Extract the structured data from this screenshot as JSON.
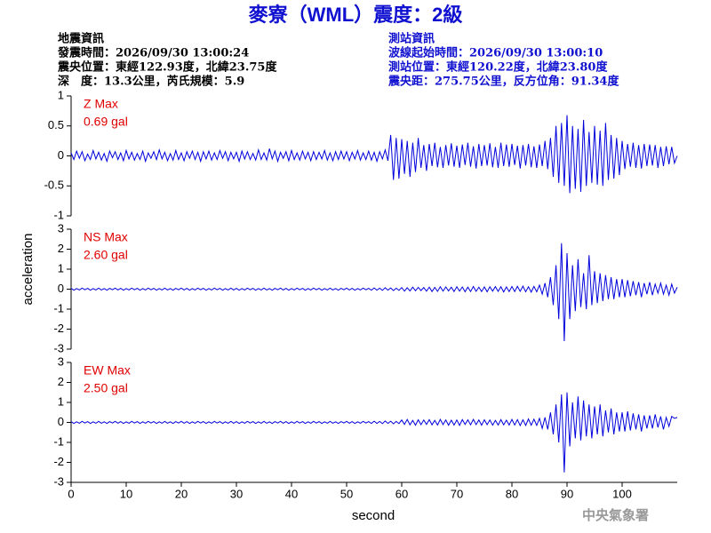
{
  "header": {
    "title": "麥寮（WML）震度：2級",
    "left": [
      "地震資訊",
      "發震時間：2026/09/30 13:00:24",
      "震央位置：東經122.93度，北緯23.75度",
      "深　度：13.3公里，芮氏規模：5.9"
    ],
    "right": [
      "測站資訊",
      "波線起始時間：2026/09/30 13:00:10",
      "測站位置：東經120.22度，北緯23.80度",
      "震央距：275.75公里，反方位角：91.34度"
    ],
    "footer": "中央氣象署"
  },
  "chart_data": {
    "type": "line",
    "xlabel": "second",
    "ylabel": "acceleration",
    "xlim": [
      0,
      110
    ],
    "xticks": [
      0,
      10,
      20,
      30,
      40,
      50,
      60,
      70,
      80,
      90,
      100
    ],
    "x": [
      0,
      0.5,
      1,
      1.5,
      2,
      2.5,
      3,
      3.5,
      4,
      4.5,
      5,
      5.5,
      6,
      6.5,
      7,
      7.5,
      8,
      8.5,
      9,
      9.5,
      10,
      10.5,
      11,
      11.5,
      12,
      12.5,
      13,
      13.5,
      14,
      14.5,
      15,
      15.5,
      16,
      16.5,
      17,
      17.5,
      18,
      18.5,
      19,
      19.5,
      20,
      20.5,
      21,
      21.5,
      22,
      22.5,
      23,
      23.5,
      24,
      24.5,
      25,
      25.5,
      26,
      26.5,
      27,
      27.5,
      28,
      28.5,
      29,
      29.5,
      30,
      30.5,
      31,
      31.5,
      32,
      32.5,
      33,
      33.5,
      34,
      34.5,
      35,
      35.5,
      36,
      36.5,
      37,
      37.5,
      38,
      38.5,
      39,
      39.5,
      40,
      40.5,
      41,
      41.5,
      42,
      42.5,
      43,
      43.5,
      44,
      44.5,
      45,
      45.5,
      46,
      46.5,
      47,
      47.5,
      48,
      48.5,
      49,
      49.5,
      50,
      50.5,
      51,
      51.5,
      52,
      52.5,
      53,
      53.5,
      54,
      54.5,
      55,
      55.5,
      56,
      56.5,
      57,
      57.5,
      58,
      58.5,
      59,
      59.5,
      60,
      60.5,
      61,
      61.5,
      62,
      62.5,
      63,
      63.5,
      64,
      64.5,
      65,
      65.5,
      66,
      66.5,
      67,
      67.5,
      68,
      68.5,
      69,
      69.5,
      70,
      70.5,
      71,
      71.5,
      72,
      72.5,
      73,
      73.5,
      74,
      74.5,
      75,
      75.5,
      76,
      76.5,
      77,
      77.5,
      78,
      78.5,
      79,
      79.5,
      80,
      80.5,
      81,
      81.5,
      82,
      82.5,
      83,
      83.5,
      84,
      84.5,
      85,
      85.5,
      86,
      86.5,
      87,
      87.5,
      88,
      88.5,
      89,
      89.5,
      90,
      90.5,
      91,
      91.5,
      92,
      92.5,
      93,
      93.5,
      94,
      94.5,
      95,
      95.5,
      96,
      96.5,
      97,
      97.5,
      98,
      98.5,
      99,
      99.5,
      100,
      100.5,
      101,
      101.5,
      102,
      102.5,
      103,
      103.5,
      104,
      104.5,
      105,
      105.5,
      106,
      106.5,
      107,
      107.5,
      108,
      108.5,
      109,
      109.5,
      110
    ],
    "panels": [
      {
        "label": "Z Max",
        "max_label": "0.69 gal",
        "ylim": [
          -1,
          1
        ],
        "yticks": [
          -1,
          -0.5,
          0,
          0.5,
          1
        ],
        "series": [
          {
            "color": "#0000dd",
            "values": [
              0.05,
              -0.06,
              0.08,
              -0.04,
              0.07,
              -0.08,
              0.03,
              -0.06,
              0.09,
              -0.05,
              0.06,
              -0.07,
              0.04,
              -0.09,
              0.08,
              -0.03,
              0.07,
              -0.06,
              0.05,
              -0.08,
              0.09,
              -0.05,
              0.06,
              -0.07,
              0.04,
              -0.06,
              0.08,
              -0.09,
              0.05,
              -0.04,
              0.07,
              -0.06,
              0.1,
              -0.05,
              0.06,
              -0.08,
              0.04,
              -0.07,
              0.09,
              -0.06,
              0.05,
              -0.08,
              0.07,
              -0.04,
              0.08,
              -0.06,
              0.06,
              -0.09,
              0.07,
              -0.05,
              0.08,
              -0.07,
              0.05,
              -0.06,
              0.09,
              -0.04,
              0.07,
              -0.08,
              0.06,
              -0.05,
              0.06,
              -0.09,
              0.08,
              -0.05,
              0.07,
              -0.06,
              0.04,
              -0.07,
              0.1,
              -0.06,
              0.05,
              -0.07,
              0.12,
              -0.05,
              0.08,
              -0.09,
              0.06,
              -0.04,
              0.07,
              -0.08,
              0.09,
              -0.06,
              0.05,
              -0.07,
              0.08,
              -0.05,
              0.06,
              -0.08,
              0.07,
              -0.06,
              0.06,
              -0.05,
              0.09,
              -0.07,
              0.05,
              -0.08,
              0.07,
              -0.06,
              0.08,
              -0.05,
              0.07,
              -0.08,
              0.06,
              -0.05,
              0.09,
              -0.07,
              0.05,
              -0.06,
              0.08,
              -0.07,
              0.06,
              -0.09,
              0.07,
              -0.05,
              0.1,
              -0.08,
              0.35,
              -0.4,
              0.3,
              -0.38,
              0.28,
              -0.3,
              0.25,
              -0.35,
              0.22,
              -0.27,
              0.3,
              -0.2,
              0.18,
              -0.25,
              0.2,
              -0.17,
              0.22,
              -0.19,
              0.15,
              -0.2,
              0.18,
              -0.16,
              0.21,
              -0.18,
              0.17,
              -0.2,
              0.19,
              -0.15,
              0.22,
              -0.18,
              0.16,
              -0.21,
              0.2,
              -0.17,
              0.18,
              -0.16,
              0.21,
              -0.19,
              0.15,
              -0.2,
              0.22,
              -0.17,
              0.19,
              -0.18,
              0.2,
              -0.15,
              0.17,
              -0.21,
              0.18,
              -0.16,
              0.2,
              -0.19,
              0.16,
              -0.2,
              0.19,
              -0.17,
              0.25,
              -0.22,
              0.3,
              -0.35,
              0.5,
              -0.45,
              0.55,
              -0.5,
              0.68,
              -0.62,
              0.5,
              -0.55,
              0.45,
              -0.6,
              0.6,
              -0.5,
              0.4,
              -0.45,
              0.5,
              -0.48,
              0.42,
              -0.5,
              0.55,
              -0.4,
              0.35,
              -0.38,
              0.3,
              -0.32,
              0.25,
              -0.22,
              0.2,
              -0.18,
              0.22,
              -0.2,
              0.18,
              -0.21,
              0.2,
              -0.17,
              0.19,
              -0.16,
              0.18,
              -0.2,
              0.15,
              -0.17,
              0.16,
              -0.14,
              0.15,
              -0.12,
              0
            ]
          }
        ]
      },
      {
        "label": "NS Max",
        "max_label": "2.60 gal",
        "ylim": [
          -3,
          3
        ],
        "yticks": [
          -3,
          -2,
          -1,
          0,
          1,
          2,
          3
        ],
        "series": [
          {
            "color": "#0000dd",
            "values": [
              0.04,
              -0.05,
              0.03,
              -0.04,
              0.05,
              -0.03,
              0.04,
              -0.05,
              0.03,
              -0.04,
              0.05,
              -0.04,
              0.03,
              -0.05,
              0.04,
              -0.03,
              0.05,
              -0.04,
              0.04,
              -0.05,
              0.03,
              -0.04,
              0.05,
              -0.03,
              0.04,
              -0.05,
              0.03,
              -0.04,
              0.05,
              -0.03,
              0.04,
              -0.05,
              0.03,
              -0.04,
              0.05,
              -0.04,
              0.03,
              -0.05,
              0.04,
              -0.03,
              0.05,
              -0.04,
              0.04,
              -0.05,
              0.03,
              -0.04,
              0.05,
              -0.03,
              0.04,
              -0.05,
              0.03,
              -0.04,
              0.05,
              -0.03,
              0.04,
              -0.05,
              0.03,
              -0.04,
              0.05,
              -0.04,
              0.04,
              -0.05,
              0.03,
              -0.04,
              0.05,
              -0.03,
              0.04,
              -0.05,
              0.03,
              -0.04,
              0.05,
              -0.04,
              0.03,
              -0.05,
              0.04,
              -0.03,
              0.05,
              -0.04,
              0.04,
              -0.05,
              0.03,
              -0.04,
              0.05,
              -0.03,
              0.04,
              -0.05,
              0.03,
              -0.04,
              0.05,
              -0.03,
              0.04,
              -0.05,
              0.03,
              -0.04,
              0.05,
              -0.04,
              0.03,
              -0.05,
              0.04,
              -0.03,
              0.05,
              -0.04,
              0.04,
              -0.05,
              0.03,
              -0.04,
              0.05,
              -0.03,
              0.04,
              -0.05,
              0.06,
              -0.05,
              0.05,
              -0.06,
              0.07,
              -0.05,
              0.06,
              -0.07,
              0.05,
              -0.06,
              0.08,
              -0.1,
              0.07,
              -0.09,
              0.1,
              -0.08,
              0.09,
              -0.07,
              0.08,
              -0.1,
              0.1,
              -0.12,
              0.09,
              -0.11,
              0.12,
              -0.1,
              0.11,
              -0.09,
              0.1,
              -0.12,
              0.12,
              -0.1,
              0.11,
              -0.13,
              0.1,
              -0.12,
              0.13,
              -0.11,
              0.1,
              -0.12,
              0.11,
              -0.13,
              0.12,
              -0.1,
              0.13,
              -0.11,
              0.12,
              -0.14,
              0.11,
              -0.12,
              0.13,
              -0.12,
              0.14,
              -0.11,
              0.15,
              -0.13,
              0.12,
              -0.15,
              0.14,
              -0.13,
              0.2,
              -0.25,
              0.3,
              -0.4,
              0.6,
              -0.8,
              1.2,
              -1.5,
              2.3,
              -2.6,
              1.8,
              -1.5,
              1.2,
              -1.1,
              1.5,
              -0.9,
              0.8,
              -1.0,
              1.7,
              -0.8,
              0.9,
              -0.7,
              0.8,
              -0.6,
              0.7,
              -0.5,
              0.6,
              -0.5,
              0.5,
              -0.4,
              0.5,
              -0.4,
              0.45,
              -0.35,
              0.4,
              -0.3,
              0.35,
              -0.4,
              0.3,
              -0.25,
              0.35,
              -0.3,
              0.25,
              -0.2,
              0.3,
              -0.25,
              0.2,
              -0.3,
              0.25,
              -0.2,
              0.1
            ]
          }
        ]
      },
      {
        "label": "EW Max",
        "max_label": "2.50 gal",
        "ylim": [
          -3,
          3
        ],
        "yticks": [
          -3,
          -2,
          -1,
          0,
          1,
          2,
          3
        ],
        "series": [
          {
            "color": "#0000dd",
            "values": [
              0.04,
              -0.05,
              0.03,
              -0.04,
              0.05,
              -0.03,
              0.04,
              -0.05,
              0.03,
              -0.04,
              0.05,
              -0.04,
              0.03,
              -0.05,
              0.04,
              -0.03,
              0.05,
              -0.04,
              0.04,
              -0.05,
              0.03,
              -0.04,
              0.05,
              -0.03,
              0.04,
              -0.05,
              0.03,
              -0.04,
              0.05,
              -0.03,
              0.04,
              -0.05,
              0.03,
              -0.04,
              0.05,
              -0.04,
              0.03,
              -0.05,
              0.04,
              -0.03,
              0.05,
              -0.04,
              0.04,
              -0.05,
              0.03,
              -0.04,
              0.05,
              -0.03,
              0.04,
              -0.05,
              0.03,
              -0.04,
              0.05,
              -0.03,
              0.04,
              -0.05,
              0.03,
              -0.04,
              0.05,
              -0.04,
              0.04,
              -0.05,
              0.03,
              -0.04,
              0.05,
              -0.03,
              0.04,
              -0.05,
              0.03,
              -0.04,
              0.05,
              -0.04,
              0.03,
              -0.05,
              0.04,
              -0.03,
              0.05,
              -0.04,
              0.04,
              -0.05,
              0.03,
              -0.04,
              0.05,
              -0.03,
              0.04,
              -0.05,
              0.03,
              -0.04,
              0.05,
              -0.03,
              0.04,
              -0.05,
              0.03,
              -0.04,
              0.05,
              -0.04,
              0.03,
              -0.05,
              0.04,
              -0.03,
              0.05,
              -0.04,
              0.04,
              -0.05,
              0.03,
              -0.04,
              0.05,
              -0.03,
              0.04,
              -0.05,
              0.06,
              -0.05,
              0.05,
              -0.06,
              0.07,
              -0.05,
              0.06,
              -0.07,
              0.05,
              -0.06,
              0.12,
              -0.1,
              0.15,
              -0.12,
              0.1,
              -0.14,
              0.13,
              -0.11,
              0.12,
              -0.1,
              0.14,
              -0.12,
              0.1,
              -0.13,
              0.15,
              -0.11,
              0.12,
              -0.14,
              0.11,
              -0.13,
              0.12,
              -0.15,
              0.14,
              -0.1,
              0.13,
              -0.12,
              0.15,
              -0.11,
              0.12,
              -0.14,
              0.13,
              -0.11,
              0.12,
              -0.14,
              0.1,
              -0.13,
              0.14,
              -0.12,
              0.11,
              -0.13,
              0.15,
              -0.13,
              0.14,
              -0.16,
              0.13,
              -0.15,
              0.17,
              -0.14,
              0.16,
              -0.15,
              0.2,
              -0.3,
              0.25,
              -0.35,
              0.5,
              -0.6,
              0.9,
              -1.0,
              1.4,
              -2.5,
              1.5,
              -1.2,
              1.0,
              -0.8,
              1.3,
              -0.9,
              1.1,
              -0.7,
              0.9,
              -0.8,
              0.8,
              -0.6,
              0.9,
              -0.7,
              0.6,
              -0.5,
              0.7,
              -0.6,
              0.5,
              -0.45,
              0.5,
              -0.45,
              0.55,
              -0.4,
              0.45,
              -0.35,
              0.4,
              -0.45,
              0.35,
              -0.3,
              0.35,
              -0.3,
              0.4,
              -0.25,
              0.3,
              -0.35,
              0.25,
              -0.2,
              0.3,
              0.2,
              0.25
            ]
          }
        ]
      }
    ]
  }
}
